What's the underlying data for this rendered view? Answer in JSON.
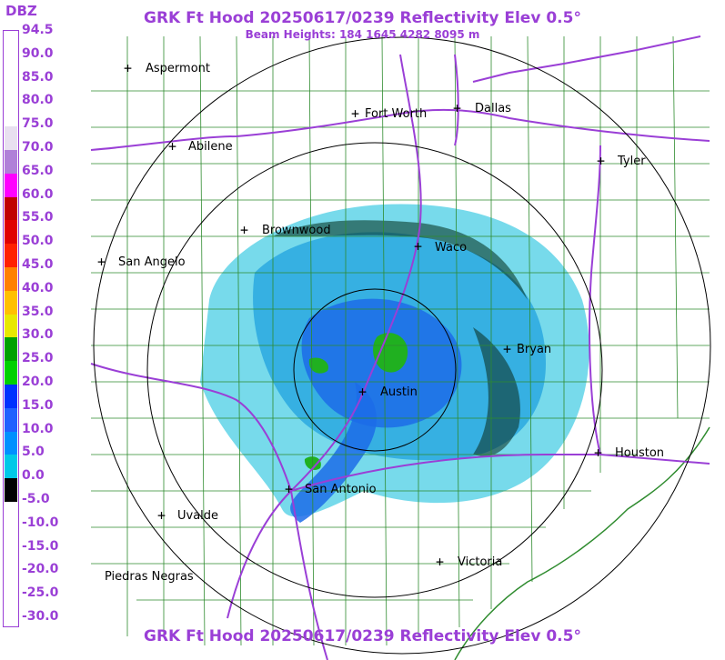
{
  "header": {
    "title": "GRK Ft Hood 20250617/0239 Reflectivity Elev 0.5°",
    "subtitle": "Beam Heights: 184 1645 4282 8095 m",
    "footer": "GRK Ft Hood 20250617/0239 Reflectivity Elev 0.5°"
  },
  "legend": {
    "unit": "DBZ",
    "ticks": [
      "94.5",
      "90.0",
      "85.0",
      "80.0",
      "75.0",
      "70.0",
      "65.0",
      "60.0",
      "55.0",
      "50.0",
      "45.0",
      "40.0",
      "35.0",
      "30.0",
      "25.0",
      "20.0",
      "15.0",
      "10.0",
      "5.0",
      "0.0",
      "-5.0",
      "-10.0",
      "-15.0",
      "-20.0",
      "-25.0",
      "-30.0"
    ],
    "colors": [
      "#ffffff",
      "#ffffff",
      "#ffffff",
      "#ffffff",
      "#e8e0f0",
      "#b080d8",
      "#ff00ff",
      "#c00000",
      "#e00000",
      "#ff2000",
      "#ff8000",
      "#ffc000",
      "#e8e800",
      "#00a000",
      "#00d000",
      "#0030ff",
      "#2060ff",
      "#0090ff",
      "#00c8e8",
      "#000000",
      "#ffffff",
      "#ffffff",
      "#ffffff",
      "#ffffff",
      "#ffffff"
    ]
  },
  "cities": [
    {
      "name": "Aspermont"
    },
    {
      "name": "Fort Worth"
    },
    {
      "name": "Dallas"
    },
    {
      "name": "Abilene"
    },
    {
      "name": "Tyler"
    },
    {
      "name": "Brownwood"
    },
    {
      "name": "Waco"
    },
    {
      "name": "San Angelo"
    },
    {
      "name": "Bryan"
    },
    {
      "name": "Austin"
    },
    {
      "name": "Houston"
    },
    {
      "name": "San Antonio"
    },
    {
      "name": "Uvalde"
    },
    {
      "name": "Victoria"
    },
    {
      "name": "Piedras Negras"
    }
  ],
  "colors": {
    "text_accent": "#9a3fd6",
    "county_lines": "#2e8b2e",
    "highways": "#9a3fd6",
    "range_rings": "#000000"
  }
}
